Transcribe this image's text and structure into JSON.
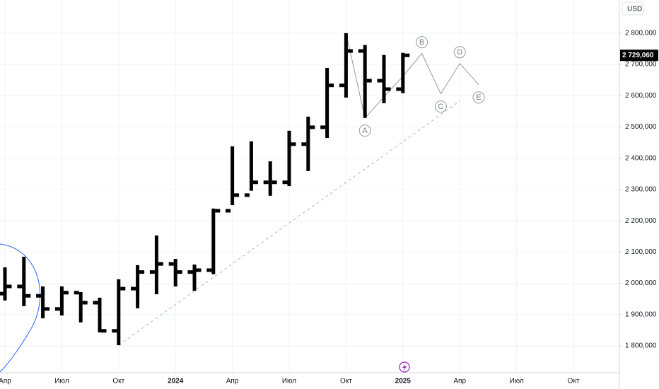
{
  "chart_data": {
    "type": "ohlc",
    "currency": "USD",
    "categories": [
      "Апр",
      null,
      null,
      "Июл",
      null,
      null,
      "Окт",
      null,
      null,
      "2024",
      null,
      null,
      "Апр",
      null,
      null,
      "Июл",
      null,
      null,
      "Окт",
      null,
      null,
      "2025",
      null,
      null,
      "Апр",
      null,
      null,
      "Июл",
      null,
      null,
      "Окт",
      null
    ],
    "ohlc": {
      "color": "#000000",
      "open": [
        1967000,
        1990000,
        1960000,
        1918000,
        1970000,
        1938000,
        1848000,
        1983000,
        2036000,
        2062000,
        2036000,
        2042000,
        2232000,
        2282000,
        2323000,
        2323000,
        2445000,
        2499000,
        2633000,
        2743000,
        2648000,
        2621000,
        null,
        null,
        null,
        null,
        null,
        null,
        null,
        null,
        null,
        null
      ],
      "high": [
        2051000,
        2085000,
        1990000,
        1990000,
        1972000,
        1954000,
        2013000,
        2058000,
        2153000,
        2078000,
        2060000,
        2239000,
        2438000,
        2454000,
        2390000,
        2488000,
        2533000,
        2689000,
        2800000,
        2762000,
        2730000,
        2737000,
        null,
        null,
        null,
        null,
        null,
        null,
        null,
        null,
        null,
        null
      ],
      "low": [
        1945000,
        1927000,
        1888000,
        1897000,
        1875000,
        1843000,
        1802000,
        1920000,
        1965000,
        1990000,
        1976000,
        2029000,
        2250000,
        2296000,
        2280000,
        2311000,
        2359000,
        2465000,
        2594000,
        2529000,
        2576000,
        2608000,
        null,
        null,
        null,
        null,
        null,
        null,
        null,
        null,
        null,
        null
      ],
      "close": [
        1990000,
        1960000,
        1918000,
        1970000,
        1938000,
        1848000,
        1983000,
        2036000,
        2062000,
        2036000,
        2042000,
        2232000,
        2282000,
        2323000,
        2323000,
        2445000,
        2499000,
        2633000,
        2743000,
        2648000,
        2621000,
        2729060,
        null,
        null,
        null,
        null,
        null,
        null,
        null,
        null,
        null,
        null
      ]
    },
    "wave": {
      "color": "#9598a1",
      "values": [
        null,
        null,
        null,
        null,
        null,
        null,
        null,
        null,
        null,
        null,
        null,
        null,
        null,
        null,
        null,
        null,
        null,
        null,
        2800000,
        2529000,
        2596000,
        2662000,
        2735000,
        2606000,
        2703000,
        2635000,
        null,
        null,
        null,
        null,
        null,
        null
      ],
      "point_labels": [
        null,
        null,
        null,
        null,
        null,
        null,
        null,
        null,
        null,
        null,
        null,
        null,
        null,
        null,
        null,
        null,
        null,
        null,
        null,
        "A",
        null,
        null,
        "B",
        "C",
        "D",
        "E",
        null,
        null,
        null,
        null,
        null,
        null
      ]
    },
    "trend": {
      "color": "#b2b5be",
      "dashed": true,
      "values": [
        null,
        null,
        null,
        null,
        null,
        null,
        1802000,
        1845000,
        1889000,
        1932000,
        1976000,
        2019000,
        2062000,
        2106000,
        2149000,
        2193000,
        2236000,
        2279000,
        2323000,
        2366000,
        2409000,
        2453000,
        2496000,
        2540000,
        2583000,
        null,
        null,
        null,
        null,
        null,
        null,
        null
      ]
    },
    "last_price": {
      "value": 2729060,
      "label": "2 729,060"
    },
    "ylim": [
      1714000,
      2906000
    ],
    "yticks": [
      {
        "value": 1800000,
        "label": "1 800,000"
      },
      {
        "value": 1900000,
        "label": "1 900,000"
      },
      {
        "value": 2000000,
        "label": "2 000,000"
      },
      {
        "value": 2100000,
        "label": "2 100,000"
      },
      {
        "value": 2200000,
        "label": "2 200,000"
      },
      {
        "value": 2300000,
        "label": "2 300,000"
      },
      {
        "value": 2400000,
        "label": "2 400,000"
      },
      {
        "value": 2500000,
        "label": "2 500,000"
      },
      {
        "value": 2600000,
        "label": "2 600,000"
      },
      {
        "value": 2700000,
        "label": "2 700,000"
      },
      {
        "value": 2800000,
        "label": "2 800,000"
      }
    ],
    "grid": true
  }
}
